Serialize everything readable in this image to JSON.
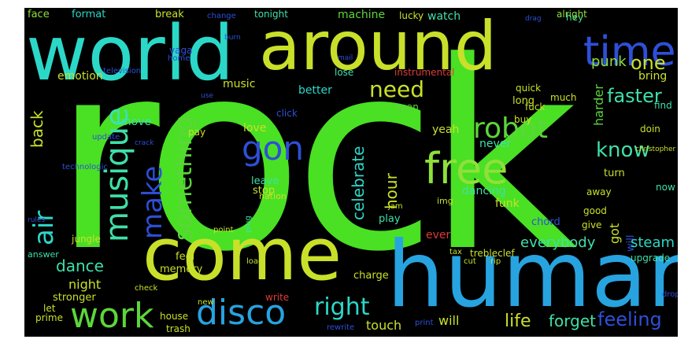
{
  "colors": {
    "background": "#000000",
    "page": "#ffffff",
    "palette": [
      "#4ae024",
      "#2bd8c8",
      "#c9e02a",
      "#27a3e0",
      "#2e4fd8",
      "#5cd63a",
      "#8fe03a",
      "#3fe0a8"
    ]
  },
  "words": [
    {
      "text": "rock"
    },
    {
      "text": "world"
    },
    {
      "text": "around"
    },
    {
      "text": "come"
    },
    {
      "text": "human"
    },
    {
      "text": "time"
    },
    {
      "text": "free"
    },
    {
      "text": "robot"
    },
    {
      "text": "disco"
    },
    {
      "text": "work"
    },
    {
      "text": "musique"
    },
    {
      "text": "make"
    },
    {
      "text": "something"
    },
    {
      "text": "gon"
    },
    {
      "text": "need"
    },
    {
      "text": "know"
    },
    {
      "text": "faster"
    },
    {
      "text": "celebrate"
    },
    {
      "text": "hour"
    },
    {
      "text": "right"
    },
    {
      "text": "life"
    },
    {
      "text": "forget"
    },
    {
      "text": "feeling"
    },
    {
      "text": "air"
    },
    {
      "text": "back"
    },
    {
      "text": "dance"
    },
    {
      "text": "night"
    },
    {
      "text": "everybody"
    },
    {
      "text": "steam"
    },
    {
      "text": "punk"
    },
    {
      "text": "one"
    },
    {
      "text": "hey"
    },
    {
      "text": "face"
    },
    {
      "text": "format"
    },
    {
      "text": "break"
    },
    {
      "text": "tonight"
    },
    {
      "text": "machine"
    },
    {
      "text": "lucky"
    },
    {
      "text": "watch"
    },
    {
      "text": "alright"
    },
    {
      "text": "emotion"
    },
    {
      "text": "music"
    },
    {
      "text": "better"
    },
    {
      "text": "lose"
    },
    {
      "text": "long"
    },
    {
      "text": "instrumental"
    },
    {
      "text": "much"
    },
    {
      "text": "harder"
    },
    {
      "text": "bring"
    },
    {
      "text": "move"
    },
    {
      "text": "love"
    },
    {
      "text": "stop"
    },
    {
      "text": "leave"
    },
    {
      "text": "yeah"
    },
    {
      "text": "never"
    },
    {
      "text": "dancing"
    },
    {
      "text": "funk"
    },
    {
      "text": "turn"
    },
    {
      "text": "now"
    },
    {
      "text": "doin"
    },
    {
      "text": "find"
    },
    {
      "text": "away"
    },
    {
      "text": "good"
    },
    {
      "text": "give"
    },
    {
      "text": "chord"
    },
    {
      "text": "got"
    },
    {
      "text": "upgrade"
    },
    {
      "text": "play"
    },
    {
      "text": "ever"
    },
    {
      "text": "trebleclef"
    },
    {
      "text": "will"
    },
    {
      "text": "touch"
    },
    {
      "text": "feel"
    },
    {
      "text": "memory"
    },
    {
      "text": "stronger"
    },
    {
      "text": "charge"
    },
    {
      "text": "write"
    },
    {
      "text": "jungle"
    },
    {
      "text": "answer"
    },
    {
      "text": "let"
    },
    {
      "text": "prime"
    },
    {
      "text": "trash"
    },
    {
      "text": "house"
    },
    {
      "text": "new"
    },
    {
      "text": "pay"
    },
    {
      "text": "nation"
    },
    {
      "text": "img"
    },
    {
      "text": "quick"
    },
    {
      "text": "fuck"
    },
    {
      "text": "buy"
    },
    {
      "text": "span"
    },
    {
      "text": "click"
    },
    {
      "text": "television"
    },
    {
      "text": "vaga"
    },
    {
      "text": "home"
    },
    {
      "text": "drop"
    },
    {
      "text": "print"
    },
    {
      "text": "rewrite"
    },
    {
      "text": "cut"
    },
    {
      "text": "christopher"
    },
    {
      "text": "tax"
    },
    {
      "text": "point"
    },
    {
      "text": "jam"
    },
    {
      "text": "mail"
    },
    {
      "text": "burn"
    },
    {
      "text": "update"
    },
    {
      "text": "technologic"
    },
    {
      "text": "rules"
    },
    {
      "text": "check"
    },
    {
      "text": "rip"
    },
    {
      "text": "drag"
    },
    {
      "text": "use"
    },
    {
      "text": "change"
    },
    {
      "text": "fix"
    },
    {
      "text": "plug"
    },
    {
      "text": "load"
    },
    {
      "text": "crack"
    }
  ]
}
